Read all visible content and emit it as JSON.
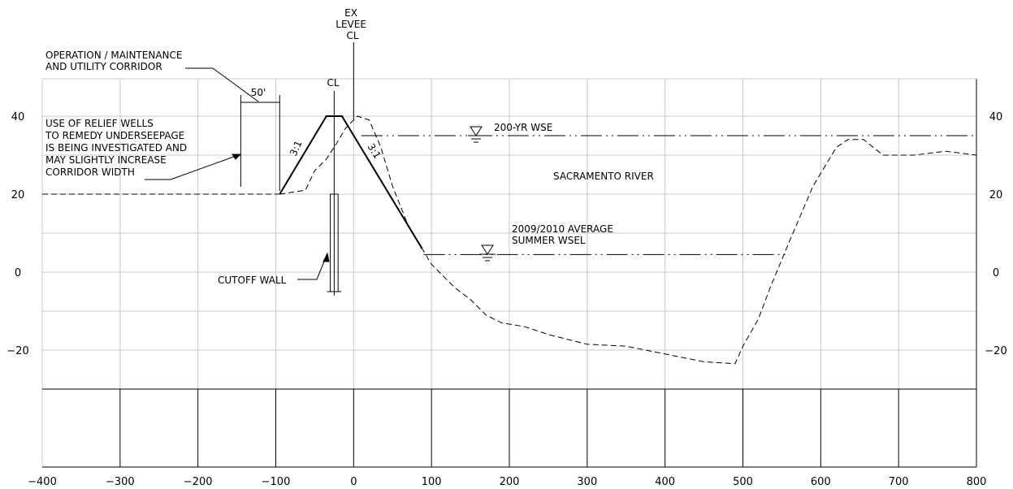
{
  "chart_data": {
    "type": "line",
    "xlim": [
      -400,
      800
    ],
    "ylim": [
      -30,
      50
    ],
    "x_ticks": [
      -400,
      -300,
      -200,
      -100,
      0,
      100,
      200,
      300,
      400,
      500,
      600,
      700,
      800
    ],
    "y_ticks_left": [
      40,
      20,
      0,
      -20
    ],
    "y_ticks_right": [
      40,
      20,
      0,
      -20
    ],
    "grid": true,
    "series": [
      {
        "kind": "proposed-levee",
        "x": [
          -400,
          -95,
          -35,
          -15,
          88
        ],
        "y": [
          20,
          20,
          40,
          40,
          6
        ]
      },
      {
        "kind": "existing-ground",
        "x": [
          -95,
          -62,
          -50,
          -35,
          -22,
          -10,
          5,
          20,
          35,
          50,
          70,
          100,
          130,
          150,
          170,
          190,
          220,
          250,
          300,
          350,
          400,
          450,
          490,
          500,
          520,
          535,
          560,
          590,
          620,
          635,
          655,
          680,
          720,
          760,
          800
        ],
        "y": [
          20,
          21,
          26,
          29,
          33,
          37,
          40,
          39,
          32,
          22,
          12,
          2,
          -4,
          -7,
          -11,
          -13,
          -14,
          -16,
          -18.5,
          -19,
          -21,
          -23,
          -23.5,
          -19,
          -12,
          -4,
          8,
          22,
          32,
          34,
          34,
          30,
          30,
          31,
          30
        ]
      }
    ],
    "wse_lines": [
      {
        "label": "200-YR WSE",
        "y": 35,
        "x_start": 10,
        "x_end": 800
      },
      {
        "label": "2009/2010 AVERAGE\nSUMMER WSEL",
        "y": 4.5,
        "x_start": 90,
        "x_end": 560
      }
    ],
    "centerlines": [
      {
        "label": "EX\nLEVEE\nCL",
        "x": 0
      },
      {
        "label": "CL",
        "x": -25
      }
    ],
    "dimension": {
      "label": "50'",
      "x_start": -145,
      "x_end": -95
    },
    "slope_labels": [
      "3:1",
      "3:1"
    ],
    "annotations": {
      "corridor": "OPERATION / MAINTENANCE\nAND UTILITY CORRIDOR",
      "relief_wells": "USE OF RELIEF WELLS\nTO REMEDY UNDERSEEPAGE\nIS BEING INVESTIGATED AND\nMAY SLIGHTLY INCREASE\nCORRIDOR WIDTH",
      "cutoff_wall": "CUTOFF WALL",
      "river": "SACRAMENTO RIVER"
    },
    "cutoff_wall": {
      "x_start": -30,
      "x_end": -20,
      "y_top": 20,
      "y_bottom": -5
    }
  }
}
